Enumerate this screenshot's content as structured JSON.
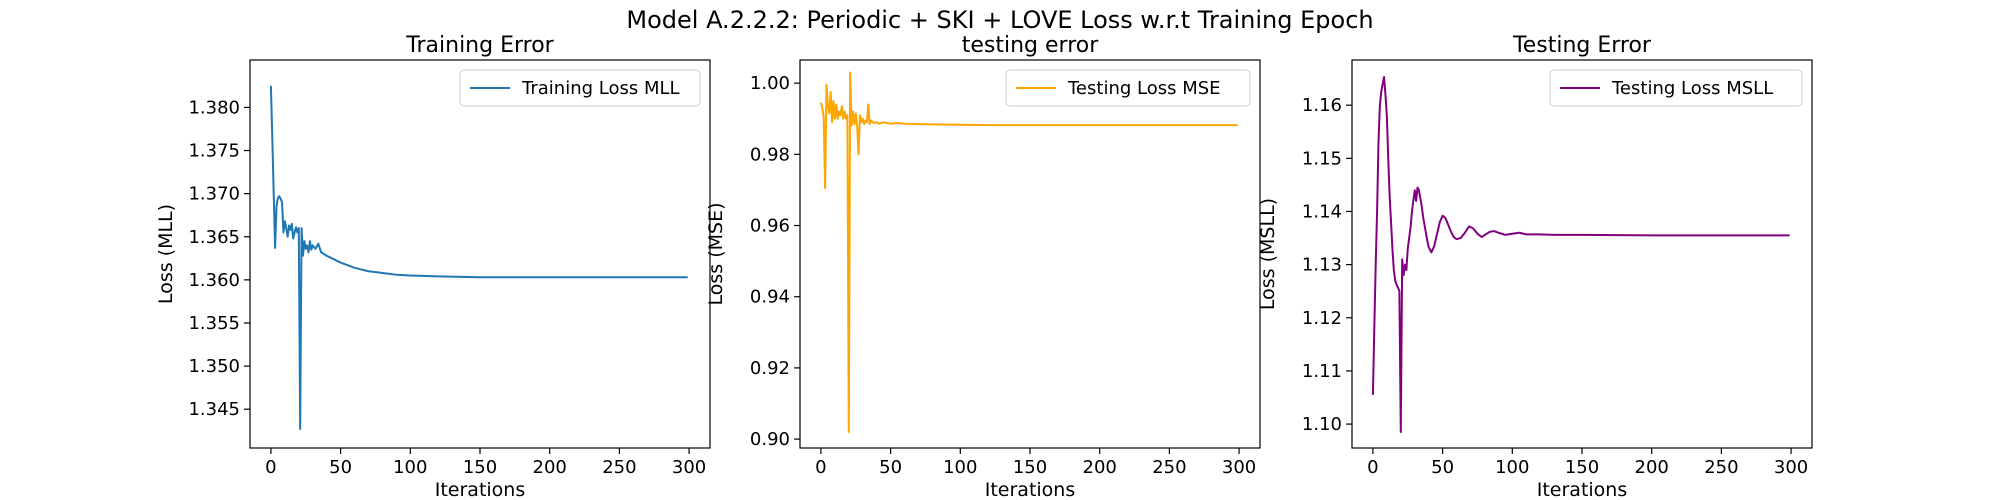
{
  "figure": {
    "suptitle": "Model A.2.2.2: Periodic + SKI + LOVE Loss w.r.t Training Epoch"
  },
  "chart_data": [
    {
      "type": "line",
      "title": "Training Error",
      "xlabel": "Iterations",
      "ylabel": "Loss (MLL)",
      "xlim": [
        -15,
        315
      ],
      "ylim": [
        1.3405,
        1.3855
      ],
      "xticks": [
        0,
        50,
        100,
        150,
        200,
        250,
        300
      ],
      "yticks": [
        1.345,
        1.35,
        1.355,
        1.36,
        1.365,
        1.37,
        1.375,
        1.38
      ],
      "ytick_decimals": 3,
      "grid": false,
      "legend_position": "top-right",
      "series": [
        {
          "name": "Training Loss MLL",
          "color": "#1f77b4",
          "x": [
            0,
            1,
            2,
            3,
            4,
            5,
            6,
            7,
            8,
            9,
            10,
            11,
            12,
            13,
            14,
            15,
            16,
            17,
            18,
            19,
            20,
            21,
            22,
            23,
            24,
            25,
            26,
            27,
            28,
            29,
            30,
            32,
            34,
            36,
            38,
            40,
            45,
            50,
            60,
            70,
            80,
            90,
            100,
            120,
            150,
            200,
            250,
            299
          ],
          "y": [
            1.3825,
            1.3765,
            1.37,
            1.3637,
            1.3685,
            1.3695,
            1.3697,
            1.3694,
            1.369,
            1.3655,
            1.3668,
            1.366,
            1.365,
            1.3663,
            1.3658,
            1.3665,
            1.3648,
            1.3655,
            1.3661,
            1.3655,
            1.366,
            1.3427,
            1.366,
            1.3628,
            1.3645,
            1.3636,
            1.364,
            1.3632,
            1.3645,
            1.3635,
            1.364,
            1.3636,
            1.3642,
            1.3632,
            1.363,
            1.3628,
            1.3624,
            1.362,
            1.3614,
            1.361,
            1.3608,
            1.3606,
            1.3605,
            1.3604,
            1.3603,
            1.3603,
            1.3603,
            1.3603
          ]
        }
      ]
    },
    {
      "type": "line",
      "title": "testing error",
      "xlabel": "Iterations",
      "ylabel": "Loss (MSE)",
      "xlim": [
        -15,
        315
      ],
      "ylim": [
        0.8975,
        1.0065
      ],
      "xticks": [
        0,
        50,
        100,
        150,
        200,
        250,
        300
      ],
      "yticks": [
        0.9,
        0.92,
        0.94,
        0.96,
        0.98,
        1.0
      ],
      "ytick_decimals": 2,
      "grid": false,
      "legend_position": "top-right",
      "series": [
        {
          "name": "Testing Loss MSE",
          "color": "#ffa500",
          "x": [
            0,
            1,
            2,
            3,
            4,
            5,
            6,
            7,
            8,
            9,
            10,
            11,
            12,
            13,
            14,
            15,
            16,
            17,
            18,
            19,
            20,
            21,
            22,
            23,
            24,
            25,
            26,
            27,
            28,
            29,
            30,
            31,
            32,
            33,
            34,
            35,
            36,
            38,
            40,
            42,
            45,
            50,
            55,
            60,
            70,
            80,
            100,
            120,
            150,
            200,
            250,
            299
          ],
          "y": [
            0.9945,
            0.993,
            0.9905,
            0.9705,
            0.9995,
            0.994,
            0.9915,
            0.9975,
            0.989,
            0.995,
            0.99,
            0.994,
            0.99,
            0.992,
            0.991,
            0.9935,
            0.99,
            0.992,
            0.99,
            0.991,
            0.902,
            1.003,
            0.988,
            0.992,
            0.9885,
            0.9915,
            0.988,
            0.98,
            0.991,
            0.989,
            0.99,
            0.9885,
            0.9895,
            0.989,
            0.994,
            0.9885,
            0.9895,
            0.9888,
            0.989,
            0.9886,
            0.989,
            0.9886,
            0.9888,
            0.9886,
            0.9885,
            0.9884,
            0.9883,
            0.9882,
            0.9882,
            0.9882,
            0.9882,
            0.9882
          ]
        }
      ]
    },
    {
      "type": "line",
      "title": "Testing Error",
      "xlabel": "Iterations",
      "ylabel": "Loss (MSLL)",
      "xlim": [
        -15,
        315
      ],
      "ylim": [
        1.0955,
        1.1685
      ],
      "xticks": [
        0,
        50,
        100,
        150,
        200,
        250,
        300
      ],
      "yticks": [
        1.1,
        1.11,
        1.12,
        1.13,
        1.14,
        1.15,
        1.16
      ],
      "ytick_decimals": 2,
      "grid": false,
      "legend_position": "top-right",
      "series": [
        {
          "name": "Testing Loss MSLL",
          "color": "#800080",
          "x": [
            0,
            1,
            2,
            3,
            4,
            5,
            6,
            7,
            8,
            9,
            10,
            11,
            12,
            13,
            14,
            15,
            16,
            17,
            18,
            19,
            20,
            21,
            22,
            23,
            24,
            25,
            26,
            27,
            28,
            29,
            30,
            31,
            32,
            33,
            34,
            35,
            36,
            37,
            38,
            39,
            40,
            42,
            44,
            46,
            48,
            50,
            52,
            54,
            56,
            58,
            60,
            63,
            66,
            69,
            72,
            75,
            78,
            81,
            84,
            87,
            90,
            95,
            100,
            105,
            110,
            120,
            130,
            150,
            200,
            250,
            299
          ],
          "y": [
            1.1055,
            1.118,
            1.13,
            1.14,
            1.153,
            1.16,
            1.1625,
            1.164,
            1.1653,
            1.162,
            1.158,
            1.15,
            1.143,
            1.138,
            1.133,
            1.129,
            1.127,
            1.1262,
            1.1257,
            1.125,
            1.0985,
            1.131,
            1.128,
            1.13,
            1.129,
            1.133,
            1.135,
            1.137,
            1.14,
            1.142,
            1.144,
            1.142,
            1.1445,
            1.144,
            1.1425,
            1.141,
            1.139,
            1.1375,
            1.136,
            1.1345,
            1.1333,
            1.1323,
            1.1335,
            1.1358,
            1.138,
            1.1392,
            1.1388,
            1.1375,
            1.1362,
            1.1352,
            1.1348,
            1.135,
            1.136,
            1.1372,
            1.1368,
            1.1358,
            1.1352,
            1.1357,
            1.1362,
            1.1363,
            1.136,
            1.1356,
            1.1358,
            1.136,
            1.1357,
            1.1357,
            1.1356,
            1.1356,
            1.1355,
            1.1355,
            1.1355
          ]
        }
      ]
    }
  ]
}
